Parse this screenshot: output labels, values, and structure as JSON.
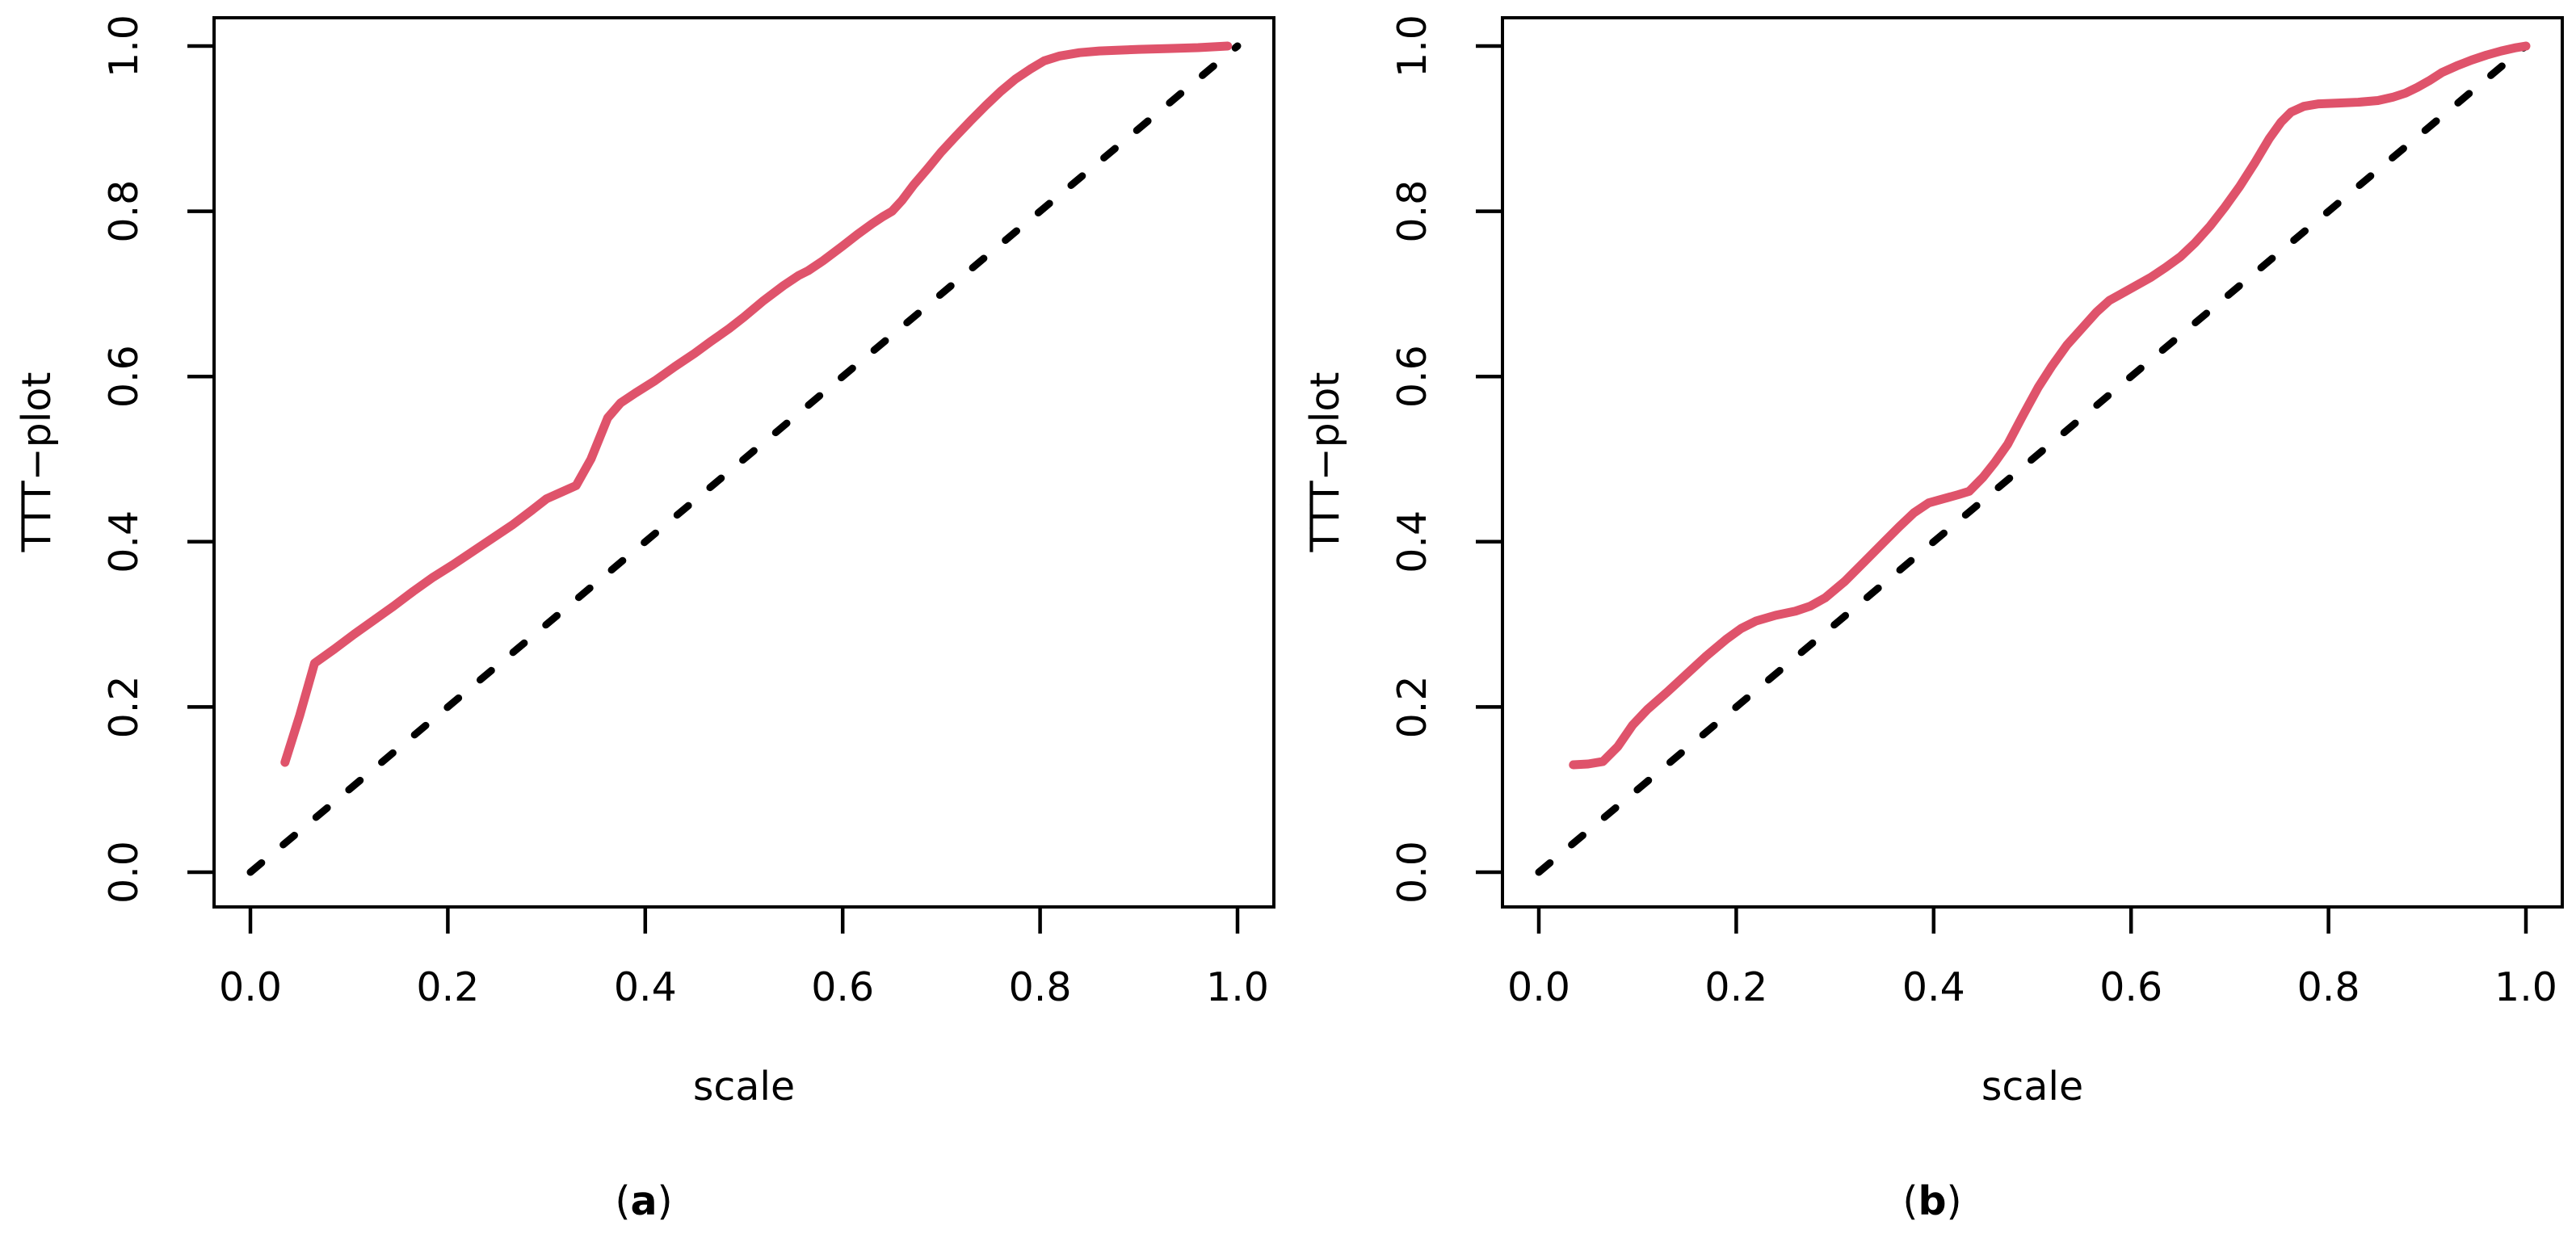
{
  "figure": {
    "panels": [
      {
        "id": "a",
        "label_open": "(",
        "letter": "a",
        "label_close": ")",
        "xlabel": "scale",
        "ylabel": "TTT−plot"
      },
      {
        "id": "b",
        "label_open": "(",
        "letter": "b",
        "label_close": ")",
        "xlabel": "scale",
        "ylabel": "TTT−plot"
      }
    ]
  },
  "axes": {
    "x": {
      "tick_labels": [
        "0.0",
        "0.2",
        "0.4",
        "0.6",
        "0.8",
        "1.0"
      ]
    },
    "y": {
      "tick_labels": [
        "0.0",
        "0.2",
        "0.4",
        "0.6",
        "0.8",
        "1.0"
      ]
    }
  },
  "colors": {
    "curve": "#DF536B",
    "reference_line": "#000000",
    "axis": "#000000",
    "background": "#FFFFFF"
  },
  "chart_data": [
    {
      "type": "line",
      "panel": "(a)",
      "xlabel": "scale",
      "ylabel": "TTT−plot",
      "xlim": [
        0,
        1
      ],
      "ylim": [
        0,
        1
      ],
      "x_ticks": [
        0,
        0.2,
        0.4,
        0.6,
        0.8,
        1.0
      ],
      "y_ticks": [
        0,
        0.2,
        0.4,
        0.6,
        0.8,
        1.0
      ],
      "grid": false,
      "legend": "none",
      "series": [
        {
          "name": "TTT transform",
          "style": "solid",
          "color": "#DF536B",
          "points": [
            [
              0.035,
              0.133
            ],
            [
              0.05,
              0.19
            ],
            [
              0.065,
              0.253
            ],
            [
              0.085,
              0.27
            ],
            [
              0.105,
              0.288
            ],
            [
              0.125,
              0.305
            ],
            [
              0.145,
              0.322
            ],
            [
              0.165,
              0.34
            ],
            [
              0.185,
              0.357
            ],
            [
              0.205,
              0.372
            ],
            [
              0.225,
              0.388
            ],
            [
              0.245,
              0.404
            ],
            [
              0.265,
              0.42
            ],
            [
              0.285,
              0.438
            ],
            [
              0.3,
              0.452
            ],
            [
              0.315,
              0.46
            ],
            [
              0.33,
              0.468
            ],
            [
              0.345,
              0.5
            ],
            [
              0.362,
              0.55
            ],
            [
              0.375,
              0.568
            ],
            [
              0.39,
              0.58
            ],
            [
              0.41,
              0.595
            ],
            [
              0.43,
              0.612
            ],
            [
              0.45,
              0.628
            ],
            [
              0.466,
              0.642
            ],
            [
              0.485,
              0.658
            ],
            [
              0.5,
              0.672
            ],
            [
              0.52,
              0.692
            ],
            [
              0.54,
              0.71
            ],
            [
              0.555,
              0.722
            ],
            [
              0.565,
              0.728
            ],
            [
              0.58,
              0.74
            ],
            [
              0.6,
              0.758
            ],
            [
              0.615,
              0.772
            ],
            [
              0.63,
              0.785
            ],
            [
              0.64,
              0.793
            ],
            [
              0.65,
              0.8
            ],
            [
              0.66,
              0.813
            ],
            [
              0.672,
              0.832
            ],
            [
              0.687,
              0.853
            ],
            [
              0.7,
              0.872
            ],
            [
              0.714,
              0.89
            ],
            [
              0.73,
              0.91
            ],
            [
              0.745,
              0.928
            ],
            [
              0.76,
              0.945
            ],
            [
              0.775,
              0.96
            ],
            [
              0.79,
              0.972
            ],
            [
              0.804,
              0.982
            ],
            [
              0.82,
              0.988
            ],
            [
              0.84,
              0.992
            ],
            [
              0.86,
              0.994
            ],
            [
              0.88,
              0.995
            ],
            [
              0.9,
              0.996
            ],
            [
              0.93,
              0.997
            ],
            [
              0.96,
              0.998
            ],
            [
              0.99,
              1.0
            ]
          ]
        },
        {
          "name": "45-degree reference",
          "style": "dashed",
          "color": "#000000",
          "points": [
            [
              0,
              0
            ],
            [
              1,
              1
            ]
          ]
        }
      ]
    },
    {
      "type": "line",
      "panel": "(b)",
      "xlabel": "scale",
      "ylabel": "TTT−plot",
      "xlim": [
        0,
        1
      ],
      "ylim": [
        0,
        1
      ],
      "x_ticks": [
        0,
        0.2,
        0.4,
        0.6,
        0.8,
        1.0
      ],
      "y_ticks": [
        0,
        0.2,
        0.4,
        0.6,
        0.8,
        1.0
      ],
      "grid": false,
      "legend": "none",
      "series": [
        {
          "name": "TTT transform",
          "style": "solid",
          "color": "#DF536B",
          "points": [
            [
              0.035,
              0.13
            ],
            [
              0.05,
              0.131
            ],
            [
              0.065,
              0.134
            ],
            [
              0.08,
              0.152
            ],
            [
              0.095,
              0.178
            ],
            [
              0.11,
              0.197
            ],
            [
              0.13,
              0.218
            ],
            [
              0.15,
              0.24
            ],
            [
              0.17,
              0.262
            ],
            [
              0.19,
              0.282
            ],
            [
              0.205,
              0.295
            ],
            [
              0.22,
              0.304
            ],
            [
              0.24,
              0.311
            ],
            [
              0.26,
              0.316
            ],
            [
              0.275,
              0.322
            ],
            [
              0.29,
              0.332
            ],
            [
              0.31,
              0.352
            ],
            [
              0.33,
              0.376
            ],
            [
              0.35,
              0.4
            ],
            [
              0.365,
              0.418
            ],
            [
              0.38,
              0.435
            ],
            [
              0.395,
              0.447
            ],
            [
              0.41,
              0.452
            ],
            [
              0.425,
              0.457
            ],
            [
              0.436,
              0.461
            ],
            [
              0.45,
              0.478
            ],
            [
              0.462,
              0.496
            ],
            [
              0.475,
              0.518
            ],
            [
              0.49,
              0.552
            ],
            [
              0.506,
              0.587
            ],
            [
              0.52,
              0.613
            ],
            [
              0.535,
              0.638
            ],
            [
              0.55,
              0.658
            ],
            [
              0.565,
              0.678
            ],
            [
              0.578,
              0.692
            ],
            [
              0.59,
              0.7
            ],
            [
              0.605,
              0.71
            ],
            [
              0.62,
              0.72
            ],
            [
              0.635,
              0.732
            ],
            [
              0.65,
              0.745
            ],
            [
              0.665,
              0.762
            ],
            [
              0.68,
              0.782
            ],
            [
              0.695,
              0.805
            ],
            [
              0.71,
              0.83
            ],
            [
              0.725,
              0.858
            ],
            [
              0.74,
              0.888
            ],
            [
              0.752,
              0.908
            ],
            [
              0.762,
              0.92
            ],
            [
              0.775,
              0.927
            ],
            [
              0.79,
              0.93
            ],
            [
              0.81,
              0.931
            ],
            [
              0.83,
              0.932
            ],
            [
              0.85,
              0.934
            ],
            [
              0.865,
              0.938
            ],
            [
              0.878,
              0.943
            ],
            [
              0.89,
              0.95
            ],
            [
              0.902,
              0.958
            ],
            [
              0.915,
              0.968
            ],
            [
              0.93,
              0.976
            ],
            [
              0.945,
              0.983
            ],
            [
              0.96,
              0.989
            ],
            [
              0.975,
              0.994
            ],
            [
              0.99,
              0.998
            ],
            [
              1.0,
              1.0
            ]
          ]
        },
        {
          "name": "45-degree reference",
          "style": "dashed",
          "color": "#000000",
          "points": [
            [
              0,
              0
            ],
            [
              1,
              1
            ]
          ]
        }
      ]
    }
  ]
}
